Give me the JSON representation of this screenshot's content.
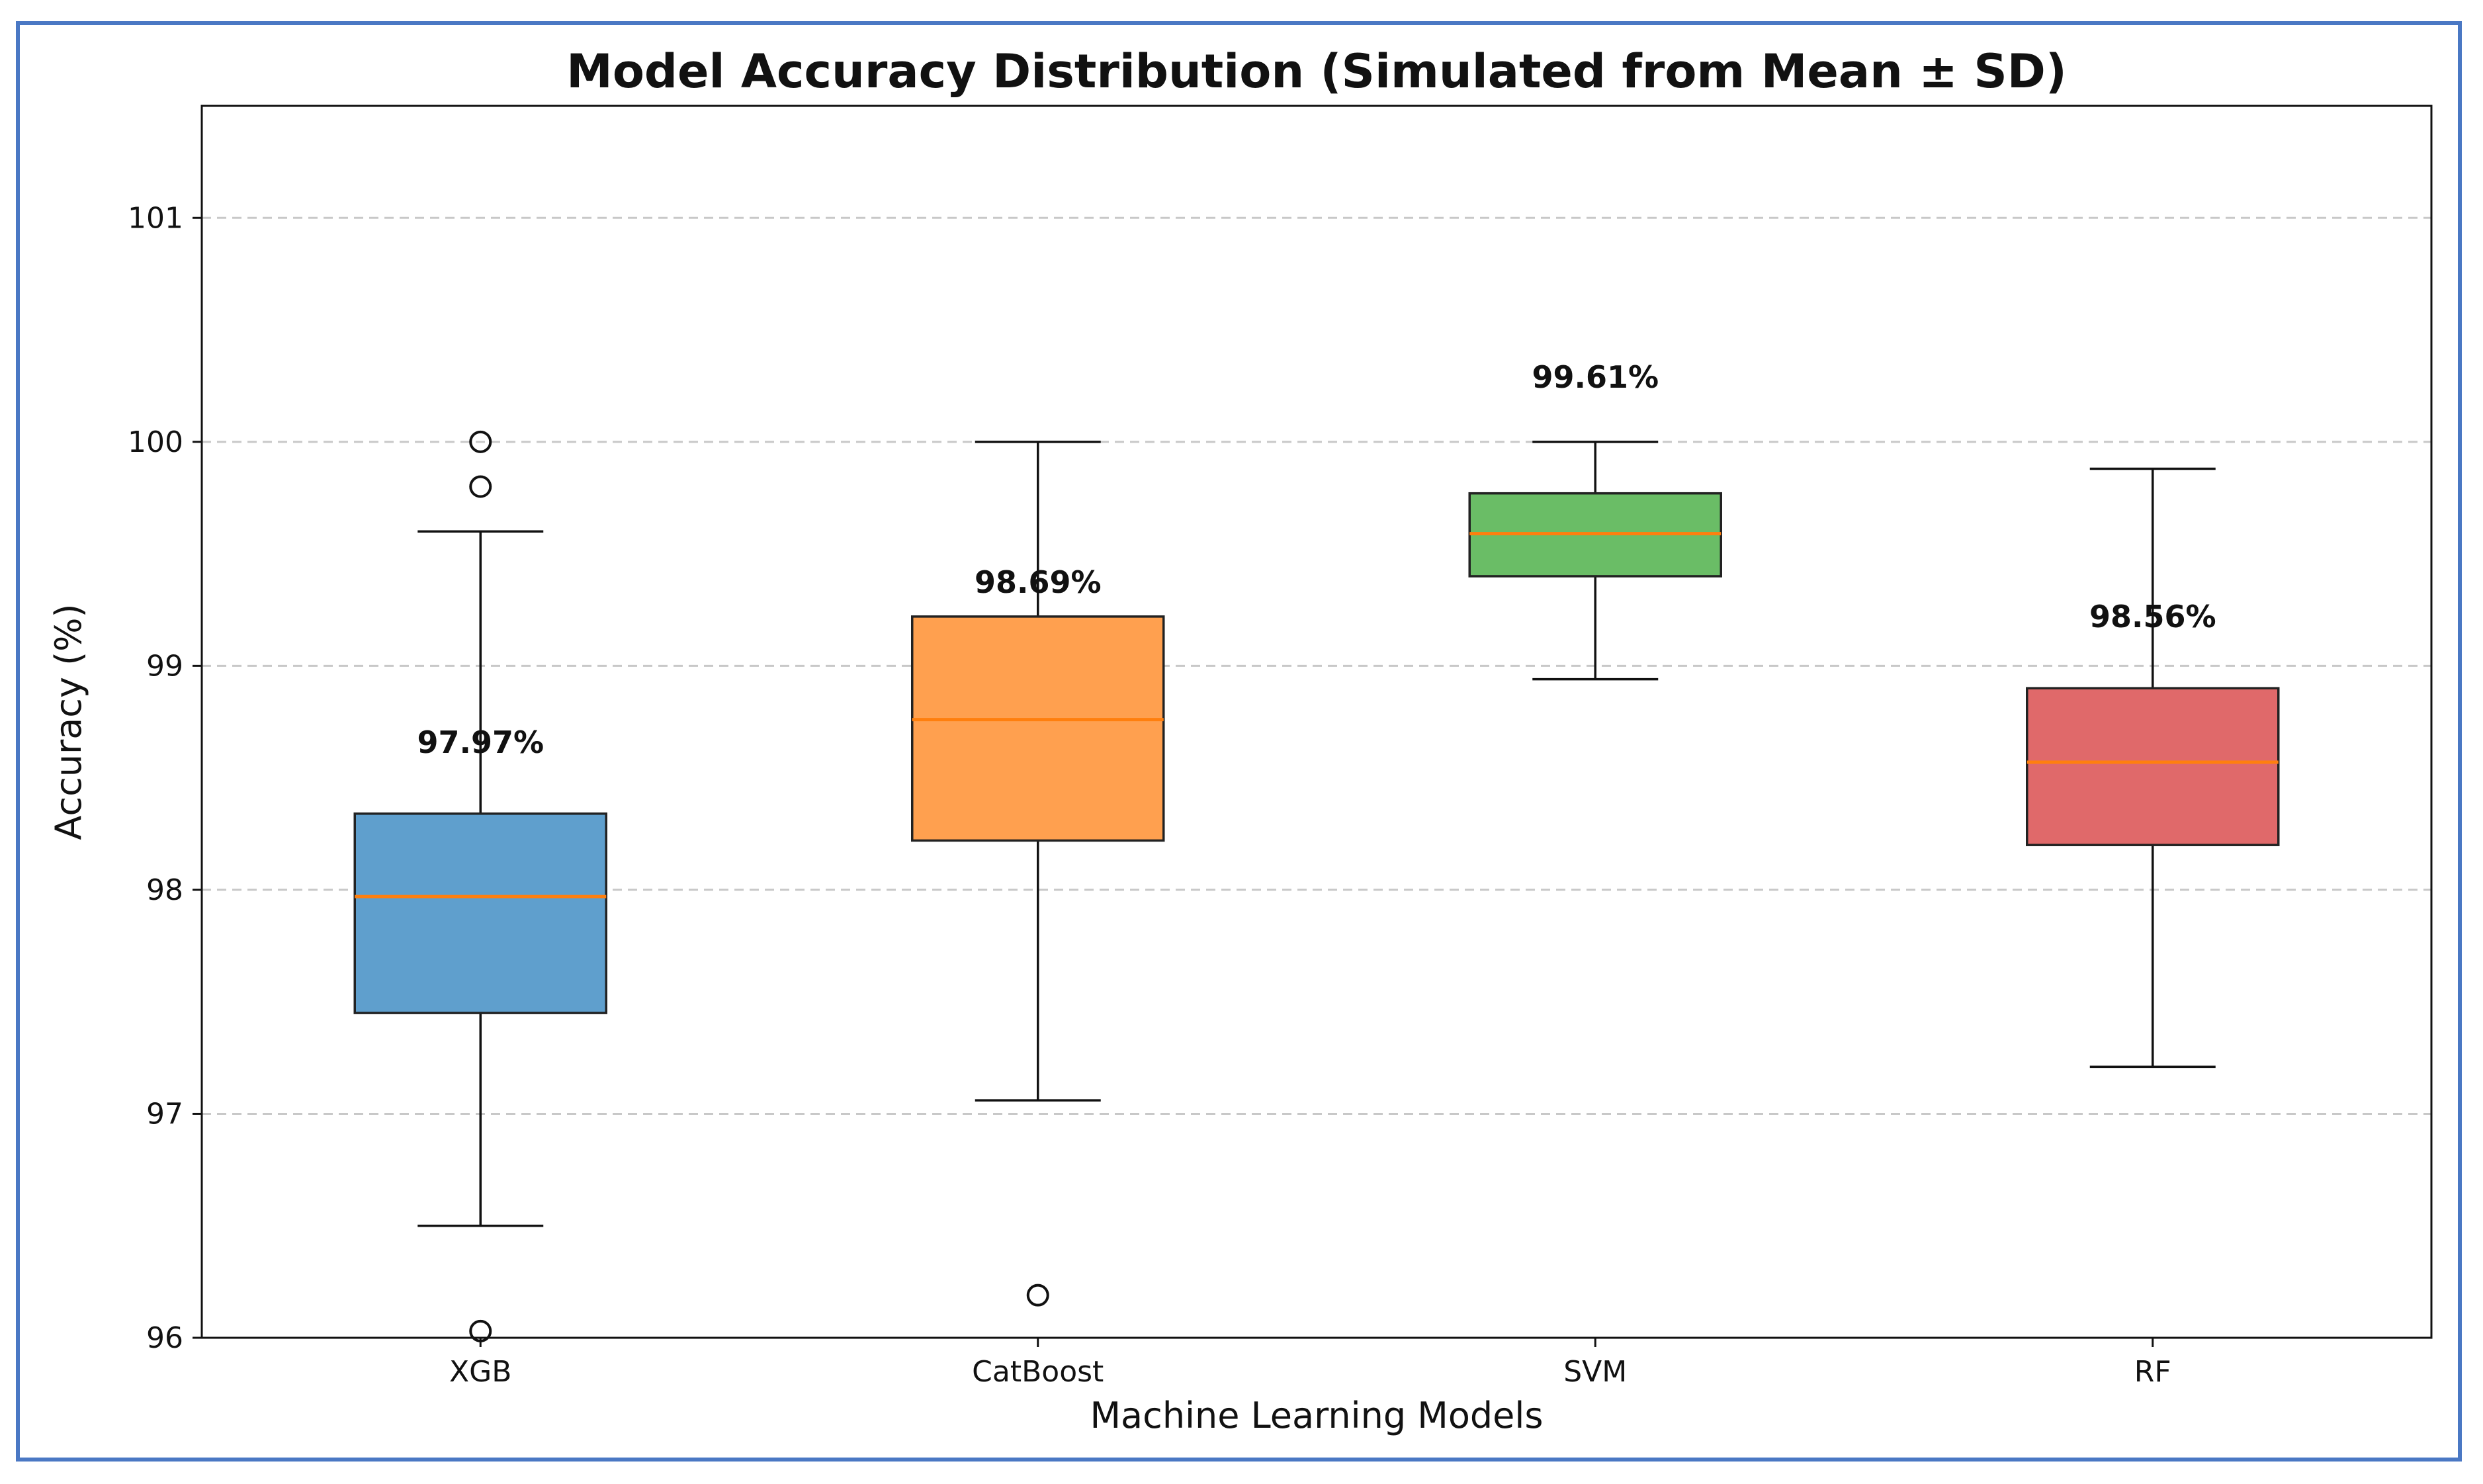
{
  "chart_data": {
    "type": "box",
    "title": "Model Accuracy Distribution (Simulated from Mean ± SD)",
    "xlabel": "Machine Learning Models",
    "ylabel": "Accuracy (%)",
    "ylim": [
      96,
      101.5
    ],
    "yticks": [
      "96",
      "97",
      "98",
      "99",
      "100",
      "101"
    ],
    "grid": "horizontal dashed",
    "series": [
      {
        "name": "XGB",
        "mean_label": "97.97%",
        "whisker_low": 96.5,
        "q1": 97.45,
        "median": 97.97,
        "q3": 98.34,
        "whisker_high": 99.6,
        "outliers": [
          100.0,
          99.8,
          96.03
        ],
        "color": "#5f9fcd"
      },
      {
        "name": "CatBoost",
        "mean_label": "98.69%",
        "whisker_low": 97.06,
        "q1": 98.22,
        "median": 98.76,
        "q3": 99.22,
        "whisker_high": 100.0,
        "outliers": [
          96.19
        ],
        "color": "#ffa04f"
      },
      {
        "name": "SVM",
        "mean_label": "99.61%",
        "whisker_low": 98.94,
        "q1": 99.4,
        "median": 99.59,
        "q3": 99.77,
        "whisker_high": 100.0,
        "outliers": [],
        "color": "#6abd66"
      },
      {
        "name": "RF",
        "mean_label": "98.56%",
        "whisker_low": 97.21,
        "q1": 98.2,
        "median": 98.57,
        "q3": 98.9,
        "whisker_high": 99.88,
        "outliers": [],
        "color": "#e0696a"
      }
    ],
    "median_color": "#ff7f0e",
    "frame_color": "#4a78c4"
  }
}
